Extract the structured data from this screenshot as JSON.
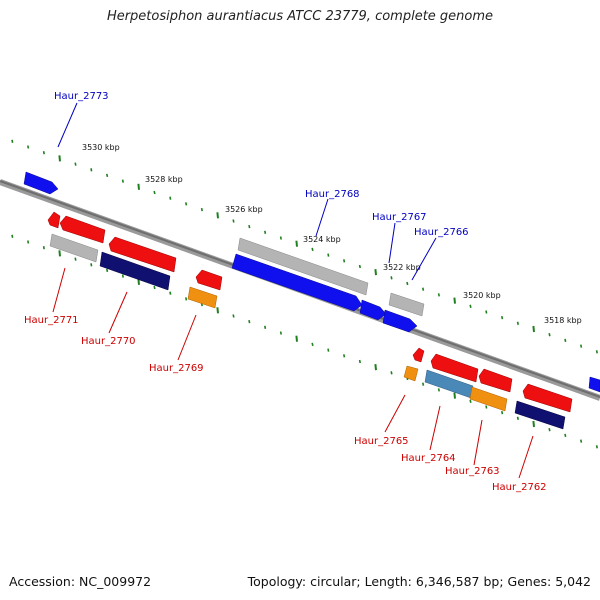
{
  "title": "Herpetosiphon aurantiacus ATCC 23779, complete genome",
  "footer": {
    "accession": "Accession: NC_009972",
    "stats": "Topology: circular; Length: 6,346,587 bp; Genes: 5,042"
  },
  "colors": {
    "plus_gene": "#1010ee",
    "minus_gene": "#ee1010",
    "navy_gene": "#101070",
    "orange_gene": "#f09010",
    "gray_feature": "#b0b0b0",
    "steel_feature": "#4a88b8",
    "backbone": "#808080",
    "tick": "#208020",
    "plus_label": "#0000c0",
    "minus_label": "#cc0000"
  },
  "scale_labels": [
    {
      "text": "3530 kbp"
    },
    {
      "text": "3528 kbp"
    },
    {
      "text": "3526 kbp"
    },
    {
      "text": "3524 kbp"
    },
    {
      "text": "3522 kbp"
    },
    {
      "text": "3520 kbp"
    },
    {
      "text": "3518 kbp"
    }
  ],
  "gene_labels": [
    {
      "text": "Haur_2773",
      "strand": "plus"
    },
    {
      "text": "Haur_2768",
      "strand": "plus"
    },
    {
      "text": "Haur_2767",
      "strand": "plus"
    },
    {
      "text": "Haur_2766",
      "strand": "plus"
    },
    {
      "text": "Haur_2771",
      "strand": "minus"
    },
    {
      "text": "Haur_2770",
      "strand": "minus"
    },
    {
      "text": "Haur_2769",
      "strand": "minus"
    },
    {
      "text": "Haur_2765",
      "strand": "minus"
    },
    {
      "text": "Haur_2764",
      "strand": "minus"
    },
    {
      "text": "Haur_2763",
      "strand": "minus"
    },
    {
      "text": "Haur_2762",
      "strand": "minus"
    }
  ]
}
